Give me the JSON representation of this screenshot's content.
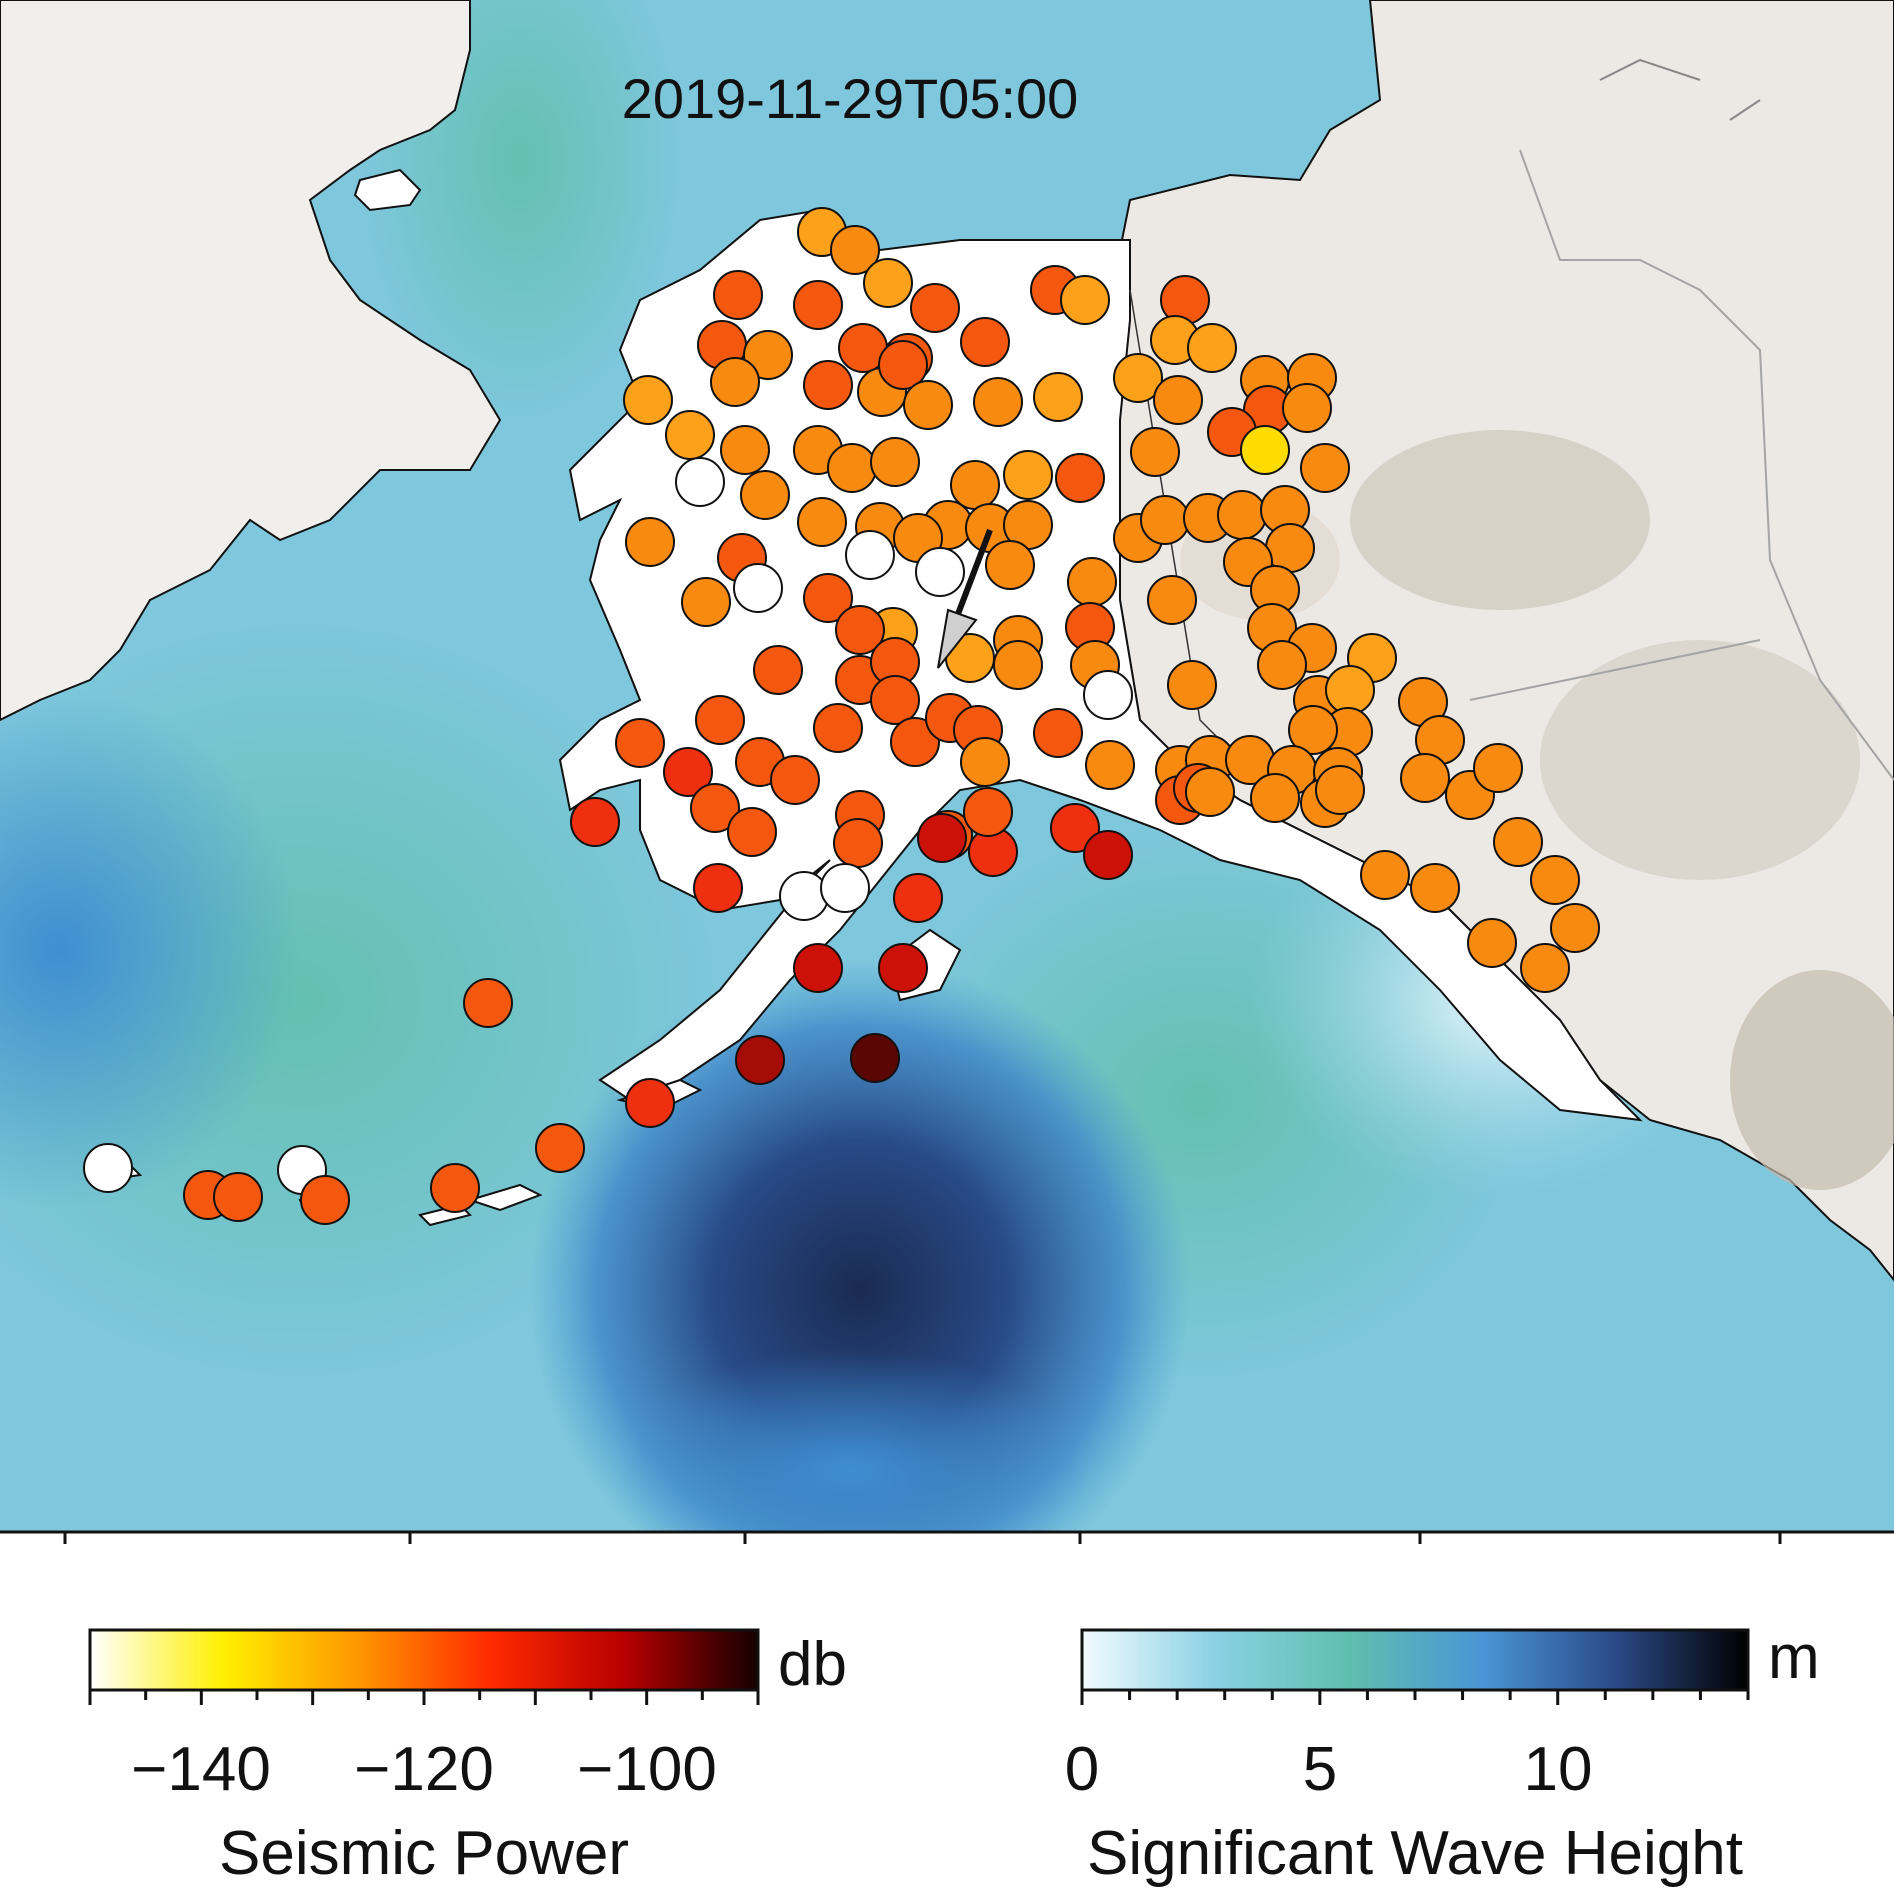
{
  "map": {
    "timestamp": "2019-11-29T05:00",
    "colors": {
      "land": "#f2f0ee",
      "land_dark": "#cfc7bb",
      "alaska_land": "#ffffff",
      "ocean_light": "#86cbe3",
      "ocean_green": "#6cc2b5",
      "ocean_blue": "#4a97d4",
      "ocean_dark": "#1c2e55",
      "coastline": "#111111",
      "border": "#9a9a9a"
    },
    "stations_description_levels_db": [
      -150,
      -140,
      -130,
      -120,
      -110,
      -100,
      -90
    ]
  },
  "colorbars": {
    "seismic": {
      "title": "Seismic Power",
      "unit": "db",
      "range": [
        -150,
        -90
      ],
      "ticks": [
        "−140",
        "−120",
        "−100"
      ],
      "tick_values": [
        -140,
        -120,
        -100
      ],
      "colors": [
        "#ffffff",
        "#ffef00",
        "#ff9800",
        "#ff2a00",
        "#b80000",
        "#160000"
      ]
    },
    "wave": {
      "title": "Significant Wave Height",
      "unit": "m",
      "range": [
        0,
        14
      ],
      "ticks": [
        "0",
        "5",
        "10"
      ],
      "tick_values": [
        0,
        5,
        10
      ],
      "colors": [
        "#f2fbff",
        "#8ad1e4",
        "#5fbfae",
        "#4a96d6",
        "#2b4a88",
        "#000000"
      ]
    }
  }
}
